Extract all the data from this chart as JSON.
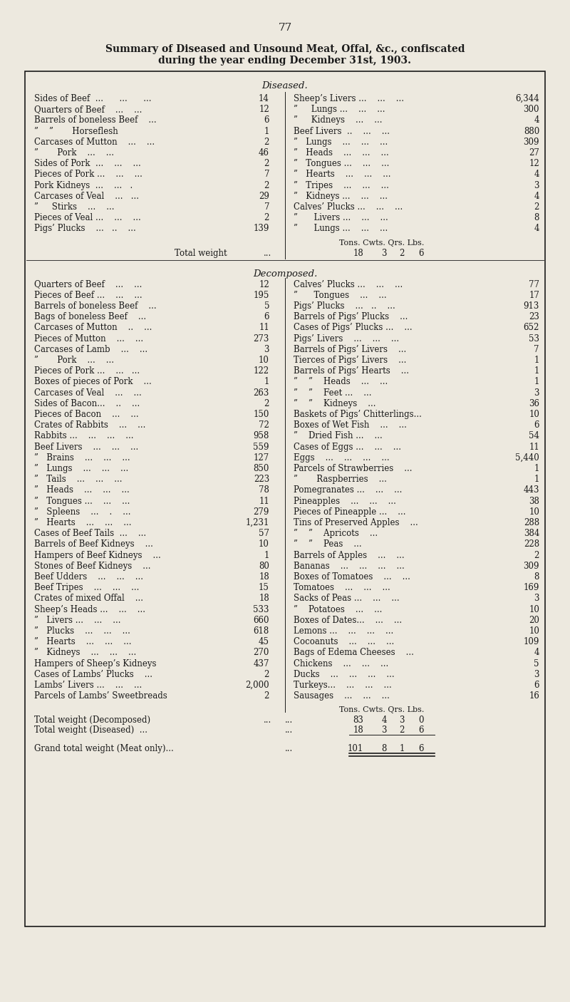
{
  "page_number": "77",
  "title_line1": "Summary of Diseased and Unsound Meat, Offal, &c., confiscated",
  "title_line2": "during the year ending December 31st, 1903.",
  "section_diseased": "Diseased.",
  "section_decomposed": "Decomposed.",
  "bg_color": "#EDE9DF",
  "text_color": "#1a1a1a",
  "diseased_left": [
    [
      "Sides of Beef  ...      ...      ...",
      "14"
    ],
    [
      "Quarters of Beef    ...    ...",
      "12"
    ],
    [
      "Barrels of boneless Beef    ...",
      "6"
    ],
    [
      "”    ”       Horseflesh",
      "1"
    ],
    [
      "Carcases of Mutton    ...    ...",
      "2"
    ],
    [
      "”       Pork    ...    ...",
      "46"
    ],
    [
      "Sides of Pork  ...    ...    ...",
      "2"
    ],
    [
      "Pieces of Pork ...    ...    ...",
      "7"
    ],
    [
      "Pork Kidneys  ...    ...   .",
      "2"
    ],
    [
      "Carcases of Veal    ...   ...",
      "29"
    ],
    [
      "”     Stirks    ...    ...",
      "7"
    ],
    [
      "Pieces of Veal ...    ...    ...",
      "2"
    ],
    [
      "Pigs’ Plucks    ...   ..    ...",
      "139"
    ]
  ],
  "diseased_right": [
    [
      "Sheep’s Livers ...    ...    ...",
      "6,344"
    ],
    [
      "”     Lungs ...    ...    ...",
      "300"
    ],
    [
      "”     Kidneys    ...    ...",
      "4"
    ],
    [
      "Beef Livers  ..    ...    ...",
      "880"
    ],
    [
      "”   Lungs    ...    ...    ...",
      "309"
    ],
    [
      "”   Heads    ...    ...    ...",
      "27"
    ],
    [
      "”   Tongues ...    ...    ...",
      "12"
    ],
    [
      "”   Hearts    ...    ...    ...",
      "4"
    ],
    [
      "”   Tripes    ...    ...    ...",
      "3"
    ],
    [
      "”   Kidneys ...    ...    ...",
      "4"
    ],
    [
      "Calves’ Plucks ...    ...    ...",
      "2"
    ],
    [
      "”      Livers ...    ...    ...",
      "8"
    ],
    [
      "”      Lungs ...    ...    ...",
      "4"
    ]
  ],
  "diseased_total_header": "Tons. Cwts. Qrs. Lbs.",
  "decomposed_left": [
    [
      "Quarters of Beef    ...    ...",
      "12"
    ],
    [
      "Pieces of Beef ...    ...    ...",
      "195"
    ],
    [
      "Barrels of boneless Beef    ...",
      "5"
    ],
    [
      "Bags of boneless Beef    ...",
      "6"
    ],
    [
      "Carcases of Mutton    ..    ...",
      "11"
    ],
    [
      "Pieces of Mutton    ...    ...",
      "273"
    ],
    [
      "Carcases of Lamb    ...    ...",
      "3"
    ],
    [
      "”       Pork    ...    ...",
      "10"
    ],
    [
      "Pieces of Pork ...    ...   ...",
      "122"
    ],
    [
      "Boxes of pieces of Pork    ...",
      "1"
    ],
    [
      "Carcases of Veal    ...    ...",
      "263"
    ],
    [
      "Sides of Bacon...    ..    ...",
      "2"
    ],
    [
      "Pieces of Bacon    ...    ...",
      "150"
    ],
    [
      "Crates of Rabbits    ...    ...",
      "72"
    ],
    [
      "Rabbits ...    ...    ...    ...",
      "958"
    ],
    [
      "Beef Livers    ...    ...    ...",
      "559"
    ],
    [
      "”   Brains    ...    ...    ...",
      "127"
    ],
    [
      "”   Lungs    ...    ...    ...",
      "850"
    ],
    [
      "”   Tails    ...    ...    ...",
      "223"
    ],
    [
      "”   Heads    ...    ...    ...",
      "78"
    ],
    [
      "”   Tongues ...    ...    ...",
      "11"
    ],
    [
      "”   Spleens    ...    .    ...",
      "279"
    ],
    [
      "”   Hearts    ...    ...    ...",
      "1,231"
    ],
    [
      "Cases of Beef Tails  ...    ...",
      "57"
    ],
    [
      "Barrels of Beef Kidneys    ...",
      "10"
    ],
    [
      "Hampers of Beef Kidneys    ...",
      "1"
    ],
    [
      "Stones of Beef Kidneys    ...",
      "80"
    ],
    [
      "Beef Udders    ...    ...    ...",
      "18"
    ],
    [
      "Beef Tripes    ...    ...    ...",
      "15"
    ],
    [
      "Crates of mixed Offal    ...",
      "18"
    ],
    [
      "Sheep’s Heads ...    ...    ...",
      "533"
    ],
    [
      "”   Livers ...    ...    ...",
      "660"
    ],
    [
      "”   Plucks    ...    ...    ...",
      "618"
    ],
    [
      "”   Hearts    ...    ...    ...",
      "45"
    ],
    [
      "”   Kidneys    ...    ...    ...",
      "270"
    ],
    [
      "Hampers of Sheep’s Kidneys",
      "437"
    ],
    [
      "Cases of Lambs’ Plucks    ...",
      "2"
    ],
    [
      "Lambs’ Livers ...    ...    ...",
      "2,000"
    ],
    [
      "Parcels of Lambs’ Sweetbreads",
      "2"
    ]
  ],
  "decomposed_right": [
    [
      "Calves’ Plucks ...    ...    ...",
      "77"
    ],
    [
      "”      Tongues    ...    ...",
      "17"
    ],
    [
      "Pigs’ Plucks    ...   ..    ...",
      "913"
    ],
    [
      "Barrels of Pigs’ Plucks    ...",
      "23"
    ],
    [
      "Cases of Pigs’ Plucks ...    ...",
      "652"
    ],
    [
      "Pigs’ Livers    ...    ...    ...",
      "53"
    ],
    [
      "Barrels of Pigs’ Livers    ...",
      "7"
    ],
    [
      "Tierces of Pigs’ Livers    ...",
      "1"
    ],
    [
      "Barrels of Pigs’ Hearts    ...",
      "1"
    ],
    [
      "”    ”    Heads    ...    ...",
      "1"
    ],
    [
      "”    ”    Feet ...    ...",
      "3"
    ],
    [
      "”    ”    Kidneys    ...",
      "36"
    ],
    [
      "Baskets of Pigs’ Chitterlings...",
      "10"
    ],
    [
      "Boxes of Wet Fish    ...    ...",
      "6"
    ],
    [
      "”    Dried Fish ...    ...",
      "54"
    ],
    [
      "Cases of Eggs ...    ...    ...",
      "11"
    ],
    [
      "Eggs    ...    ...    ...    ...",
      "5,440"
    ],
    [
      "Parcels of Strawberries    ...",
      "1"
    ],
    [
      "”       Raspberries    ...",
      "1"
    ],
    [
      "Pomegranates ...    ...    ...",
      "443"
    ],
    [
      "Pineapples    ...    ...    ...",
      "38"
    ],
    [
      "Pieces of Pineapple ...    ...",
      "10"
    ],
    [
      "Tins of Preserved Apples    ...",
      "288"
    ],
    [
      "”    ”    Apricots    ...",
      "384"
    ],
    [
      "”    ”    Peas    ...",
      "228"
    ],
    [
      "Barrels of Apples    ...    ...",
      "2"
    ],
    [
      "Bananas    ...    ...    ...    ...",
      "309"
    ],
    [
      "Boxes of Tomatoes    ...    ...",
      "8"
    ],
    [
      "Tomatoes    ...    ...    ...",
      "169"
    ],
    [
      "Sacks of Peas ...    ...    ...",
      "3"
    ],
    [
      "”    Potatoes    ...    ...",
      "10"
    ],
    [
      "Boxes of Dates...    ...    ...",
      "20"
    ],
    [
      "Lemons ...    ...    ...    ...",
      "10"
    ],
    [
      "Cocoanuts    ...    ...    ...",
      "109"
    ],
    [
      "Bags of Edema Cheeses    ...",
      "4"
    ],
    [
      "Chickens    ...    ...    ...",
      "5"
    ],
    [
      "Ducks    ...    ...    ...    ...",
      "3"
    ],
    [
      "Turkeys...    ...    ...    ...",
      "6"
    ],
    [
      "Sausages    ...    ...    ...",
      "16"
    ]
  ],
  "decomposed_total_header": "Tons. Cwts. Qrs. Lbs."
}
